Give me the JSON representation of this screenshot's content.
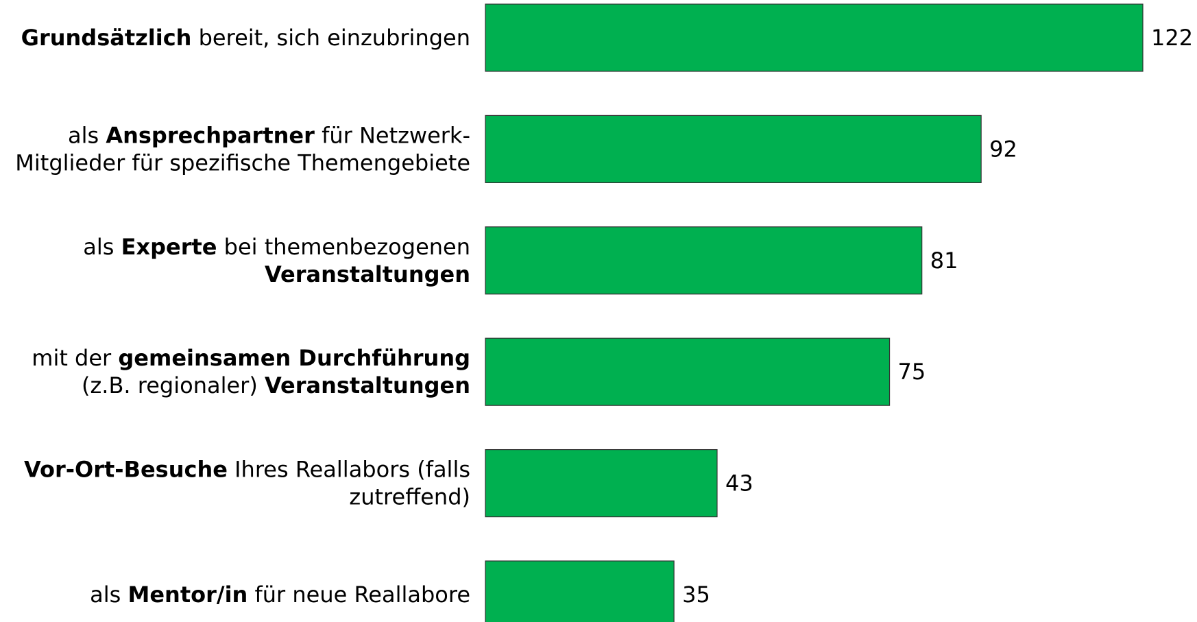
{
  "chart_data": {
    "type": "bar",
    "orientation": "horizontal",
    "color": "#00b050",
    "categories": [
      [
        [
          {
            "text": "Grundsätzlich",
            "bold": true
          },
          {
            "text": " bereit, sich einzubringen",
            "bold": false
          }
        ]
      ],
      [
        [
          {
            "text": "als ",
            "bold": false
          },
          {
            "text": "Ansprechpartner",
            "bold": true
          },
          {
            "text": " für Netzwerk-",
            "bold": false
          }
        ],
        [
          {
            "text": "Mitglieder für spezifische Themengebiete",
            "bold": false
          }
        ]
      ],
      [
        [
          {
            "text": "als ",
            "bold": false
          },
          {
            "text": "Experte",
            "bold": true
          },
          {
            "text": " bei themenbezogenen",
            "bold": false
          }
        ],
        [
          {
            "text": "Veranstaltungen",
            "bold": true
          }
        ]
      ],
      [
        [
          {
            "text": "mit der ",
            "bold": false
          },
          {
            "text": "gemeinsamen Durchführung",
            "bold": true
          }
        ],
        [
          {
            "text": "(z.B. regionaler) ",
            "bold": false
          },
          {
            "text": "Veranstaltungen",
            "bold": true
          }
        ]
      ],
      [
        [
          {
            "text": "Vor-Ort-Besuche",
            "bold": true
          },
          {
            "text": " Ihres Reallabors (falls",
            "bold": false
          }
        ],
        [
          {
            "text": "zutreffend)",
            "bold": false
          }
        ]
      ],
      [
        [
          {
            "text": "als ",
            "bold": false
          },
          {
            "text": "Mentor/in",
            "bold": true
          },
          {
            "text": " für neue Reallabore",
            "bold": false
          }
        ]
      ]
    ],
    "values": [
      122,
      92,
      81,
      75,
      43,
      35
    ]
  }
}
